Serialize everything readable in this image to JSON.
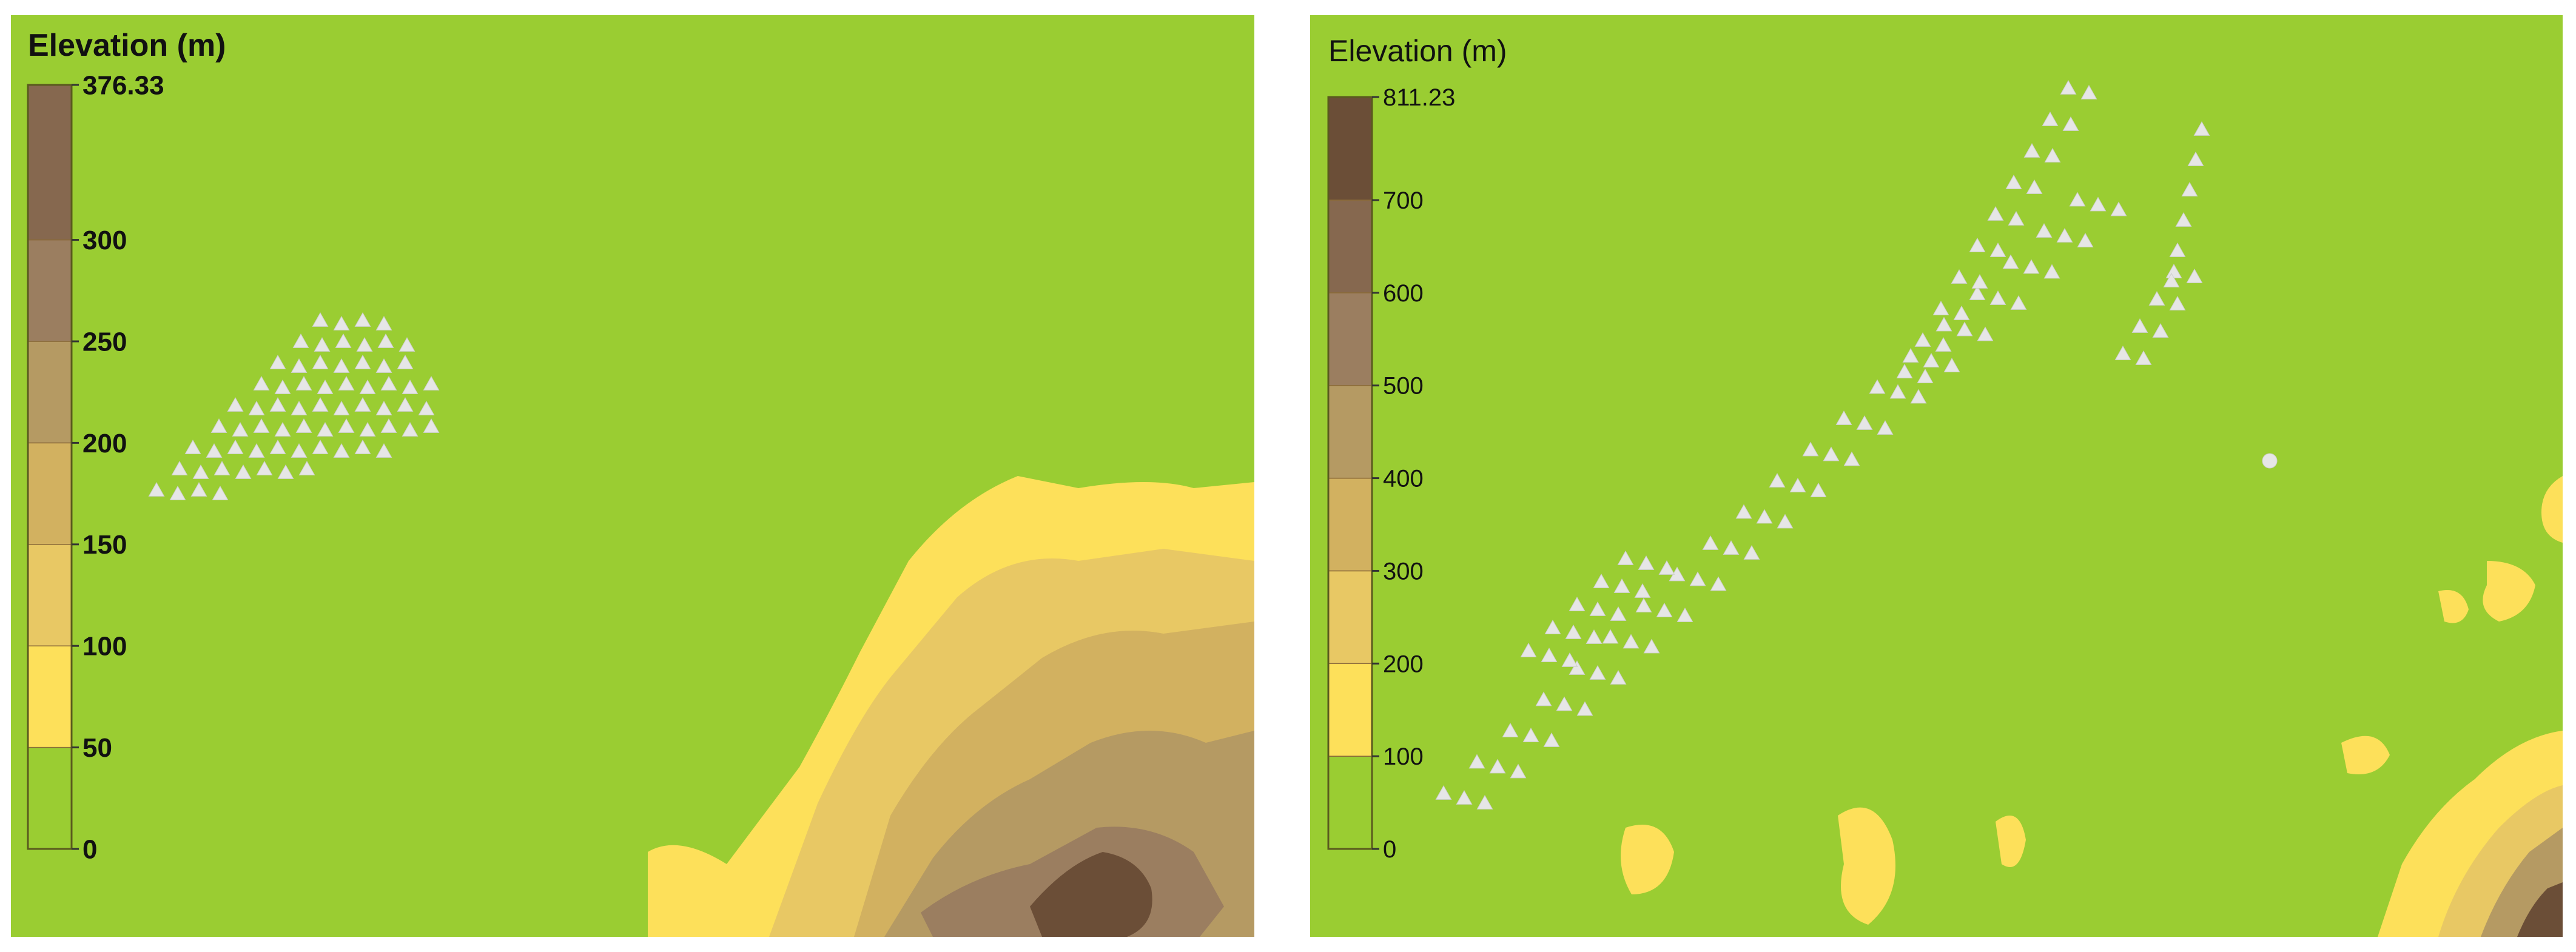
{
  "panels": [
    {
      "legend": {
        "title": "Elevation (m)",
        "max_label": "376.33",
        "ticks": [
          "300",
          "250",
          "200",
          "150",
          "100",
          "50",
          "0"
        ],
        "max_value": 376.33,
        "tick_values": [
          300,
          250,
          200,
          150,
          100,
          50,
          0
        ],
        "class_breaks": [
          0,
          50,
          100,
          150,
          200,
          250,
          300,
          376.33
        ]
      }
    },
    {
      "legend": {
        "title": "Elevation (m)",
        "max_label": "811.23",
        "ticks": [
          "700",
          "600",
          "500",
          "400",
          "300",
          "200",
          "100",
          "0"
        ],
        "max_value": 811.23,
        "tick_values": [
          700,
          600,
          500,
          400,
          300,
          200,
          100,
          0
        ],
        "class_breaks": [
          0,
          100,
          200,
          300,
          400,
          500,
          600,
          700,
          811.23
        ]
      }
    }
  ],
  "colors": {
    "base_green": "#9acd32",
    "class_colors": [
      "#9acd32",
      "#fde05a",
      "#e8c864",
      "#d2b160",
      "#b59a63",
      "#9b7e60",
      "#86684f",
      "#6b4e37"
    ],
    "turbine_marker": "#e6e6e6"
  }
}
